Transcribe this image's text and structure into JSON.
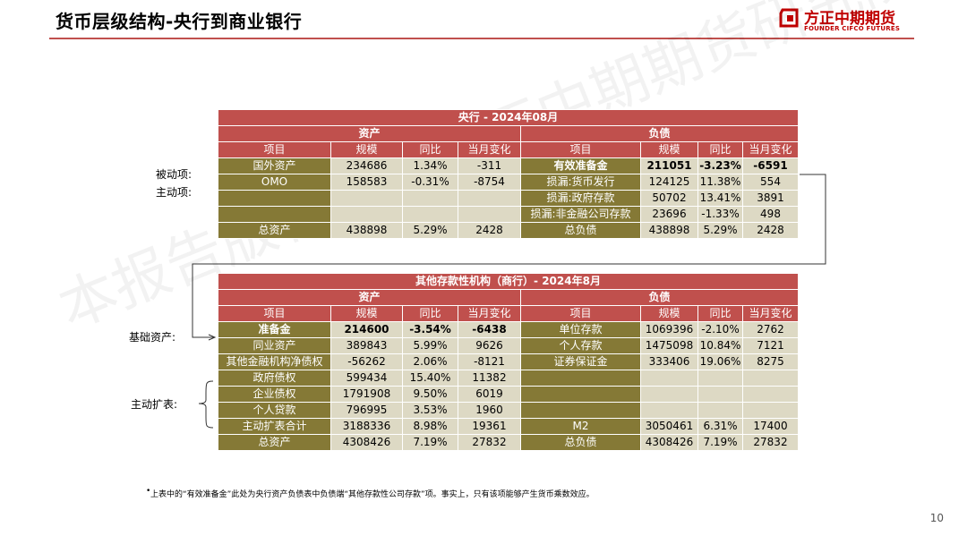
{
  "header": {
    "title": "货币层级结构-央行到商业银行",
    "logo_cn": "方正中期期货",
    "logo_en": "FOUNDER CIFCO FUTURES"
  },
  "watermark": "本报告版权属于方正中期期货研究院所有",
  "pboc": {
    "title": "央行 - 2024年08月",
    "assets_label": "资产",
    "liab_label": "负债",
    "columns": [
      "项目",
      "规模",
      "同比",
      "当月变化",
      "项目",
      "规模",
      "同比",
      "当月变化"
    ],
    "rows": [
      [
        "国外资产",
        "234686",
        "1.34%",
        "-311",
        "有效准备金",
        "211051",
        "-3.23%",
        "-6591"
      ],
      [
        "OMO",
        "158583",
        "-0.31%",
        "-8754",
        "损漏:货币发行",
        "124125",
        "11.38%",
        "554"
      ],
      [
        "",
        "",
        "",
        "",
        "损漏:政府存款",
        "50702",
        "13.41%",
        "3891"
      ],
      [
        "",
        "",
        "",
        "",
        "损漏:非金融公司存款",
        "23696",
        "-1.33%",
        "498"
      ],
      [
        "总资产",
        "438898",
        "5.29%",
        "2428",
        "总负债",
        "438898",
        "5.29%",
        "2428"
      ]
    ]
  },
  "bank": {
    "title": "其他存款性机构（商行）- 2024年8月",
    "assets_label": "资产",
    "liab_label": "负债",
    "columns": [
      "项目",
      "规模",
      "同比",
      "当月变化",
      "项目",
      "规模",
      "同比",
      "当月变化"
    ],
    "rows": [
      [
        "准备金",
        "214600",
        "-3.54%",
        "-6438",
        "单位存款",
        "1069396",
        "-2.10%",
        "2762"
      ],
      [
        "同业资产",
        "389843",
        "5.99%",
        "9626",
        "个人存款",
        "1475098",
        "10.84%",
        "7121"
      ],
      [
        "其他金融机构净债权",
        "-56262",
        "2.06%",
        "-8121",
        "证券保证金",
        "333406",
        "19.06%",
        "8275"
      ],
      [
        "政府债权",
        "599434",
        "15.40%",
        "11382",
        "",
        "",
        "",
        ""
      ],
      [
        "企业债权",
        "1791908",
        "9.50%",
        "6019",
        "",
        "",
        "",
        ""
      ],
      [
        "个人贷款",
        "796995",
        "3.53%",
        "1960",
        "",
        "",
        "",
        ""
      ],
      [
        "主动扩表合计",
        "3188336",
        "8.98%",
        "19361",
        "M2",
        "3050461",
        "6.31%",
        "17400"
      ],
      [
        "总资产",
        "4308426",
        "7.19%",
        "27832",
        "总负债",
        "4308426",
        "7.19%",
        "27832"
      ]
    ]
  },
  "side_labels": {
    "passive": "被动项:",
    "active": "主动项:",
    "base_asset": "基础资产:",
    "active_expansion": "主动扩表:"
  },
  "footnote": "上表中的“有效准备金”此处为央行资产负债表中负债端“其他存款性公司存款”项。事实上，只有该项能够产生货币乘数效应。",
  "bullet": "•",
  "page_number": "10",
  "colors": {
    "header_red": "#c0504d",
    "label_olive": "#857936",
    "value_beige": "#ddd9c4",
    "rule": "#c0504d"
  }
}
